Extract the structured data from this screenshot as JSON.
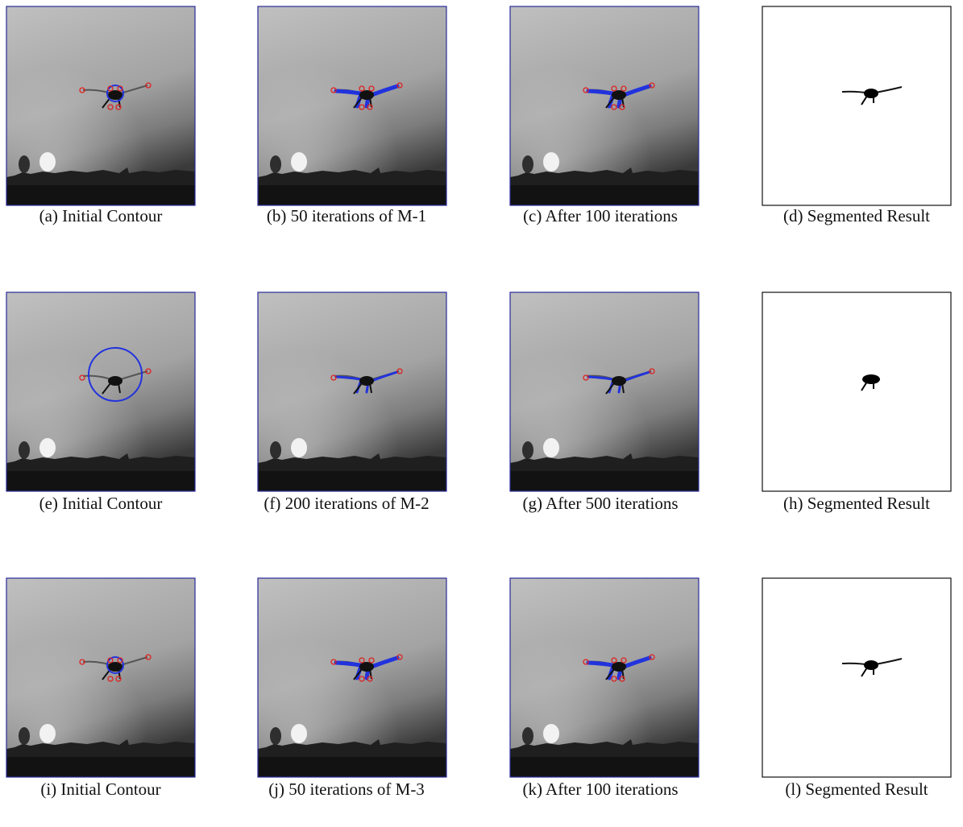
{
  "figure": {
    "rows": [
      [
        "(a) Initial Contour",
        "(b) 50 iterations of M-1",
        "(c) After 100 iterations",
        "(d) Segmented Result"
      ],
      [
        "(e) Initial Contour",
        "(f) 200 iterations of M-2",
        "(g) After 500 iterations",
        "(h) Segmented Result"
      ],
      [
        "(i) Initial Contour",
        "(j) 50 iterations of M-3",
        "(k) After 100 iterations",
        "(l) Segmented Result"
      ]
    ]
  }
}
